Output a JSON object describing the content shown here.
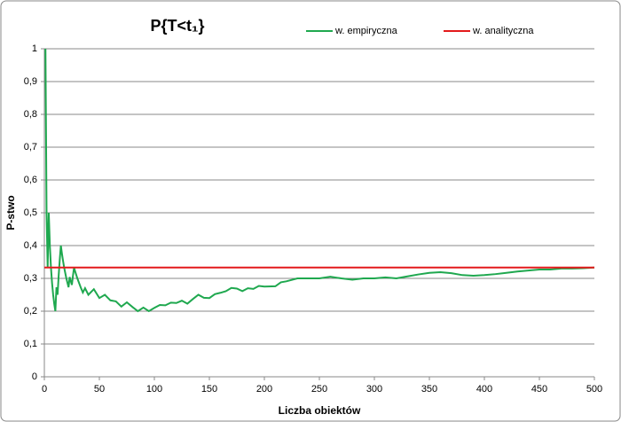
{
  "chart_data": {
    "type": "line",
    "title": "P{T<t₁}",
    "x_label": "Liczba obiektów",
    "y_label": "P-stwo",
    "xlim": [
      0,
      500
    ],
    "ylim": [
      0,
      1
    ],
    "xticks": [
      0,
      50,
      100,
      150,
      200,
      250,
      300,
      350,
      400,
      450,
      500
    ],
    "yticks": [
      0,
      {
        "value": 0.1,
        "label": "0,1"
      },
      {
        "value": 0.2,
        "label": "0,2"
      },
      {
        "value": 0.3,
        "label": "0,3"
      },
      {
        "value": 0.4,
        "label": "0,4"
      },
      {
        "value": 0.5,
        "label": "0,5"
      },
      {
        "value": 0.6,
        "label": "0,6"
      },
      {
        "value": 0.7,
        "label": "0,7"
      },
      {
        "value": 0.8,
        "label": "0,8"
      },
      {
        "value": 0.9,
        "label": "0,9"
      },
      1
    ],
    "grid": true,
    "legend": "top",
    "series": [
      {
        "name": "w. empiryczna",
        "color": "#1fa84f",
        "x": [
          1,
          2,
          3,
          4,
          5,
          6,
          7,
          8,
          9,
          10,
          11,
          12,
          13,
          14,
          15,
          16,
          17,
          18,
          20,
          22,
          23,
          25,
          26,
          27,
          28,
          30,
          33,
          35,
          37,
          40,
          45,
          50,
          55,
          60,
          65,
          70,
          75,
          80,
          85,
          90,
          95,
          100,
          105,
          110,
          115,
          120,
          125,
          130,
          135,
          140,
          145,
          150,
          155,
          160,
          165,
          170,
          175,
          180,
          185,
          190,
          195,
          200,
          210,
          215,
          220,
          230,
          240,
          250,
          260,
          270,
          280,
          290,
          300,
          310,
          320,
          330,
          340,
          350,
          360,
          370,
          380,
          390,
          400,
          410,
          420,
          430,
          440,
          450,
          460,
          470,
          480,
          490,
          500
        ],
        "values": [
          1,
          0.5,
          0.333,
          0.5,
          0.4,
          0.333,
          0.286,
          0.25,
          0.222,
          0.2,
          0.273,
          0.25,
          0.308,
          0.357,
          0.4,
          0.375,
          0.353,
          0.333,
          0.3,
          0.273,
          0.304,
          0.28,
          0.308,
          0.333,
          0.321,
          0.3,
          0.273,
          0.257,
          0.27,
          0.25,
          0.267,
          0.24,
          0.25,
          0.233,
          0.23,
          0.214,
          0.227,
          0.213,
          0.2,
          0.211,
          0.2,
          0.21,
          0.219,
          0.218,
          0.226,
          0.225,
          0.232,
          0.223,
          0.237,
          0.25,
          0.241,
          0.24,
          0.252,
          0.256,
          0.261,
          0.271,
          0.269,
          0.261,
          0.27,
          0.268,
          0.277,
          0.275,
          0.276,
          0.288,
          0.291,
          0.3,
          0.3,
          0.3,
          0.305,
          0.3,
          0.296,
          0.3,
          0.3,
          0.303,
          0.3,
          0.306,
          0.312,
          0.317,
          0.319,
          0.316,
          0.31,
          0.308,
          0.31,
          0.313,
          0.317,
          0.321,
          0.324,
          0.327,
          0.327,
          0.33,
          0.33,
          0.331,
          0.333
        ]
      },
      {
        "name": "w. analityczna",
        "color": "#e31a1c",
        "x": [
          0,
          500
        ],
        "values": [
          0.333,
          0.333
        ]
      }
    ]
  }
}
